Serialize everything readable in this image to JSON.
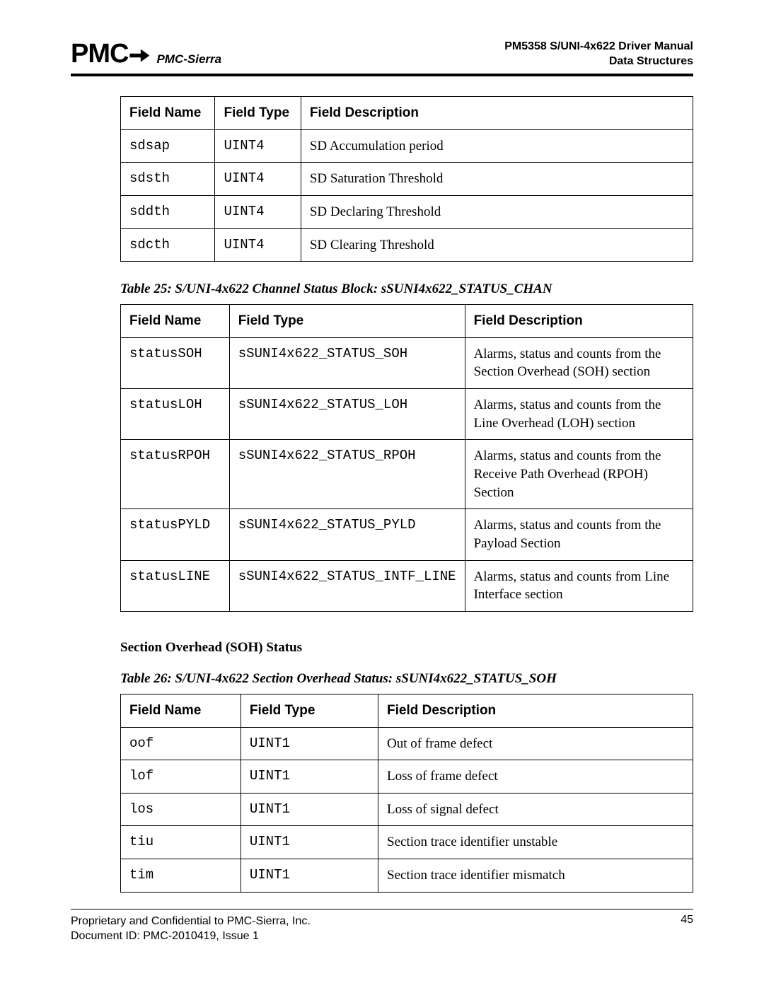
{
  "header": {
    "logo_text": "PMC",
    "logo_sub": "PMC-Sierra",
    "doc_title_line1": "PM5358 S/UNI-4x622 Driver Manual",
    "doc_title_line2": "Data Structures"
  },
  "table1": {
    "headers": [
      "Field Name",
      "Field Type",
      "Field Description"
    ],
    "rows": [
      {
        "name": "sdsap",
        "type": "UINT4",
        "desc": "SD Accumulation period"
      },
      {
        "name": "sdsth",
        "type": "UINT4",
        "desc": "SD Saturation Threshold"
      },
      {
        "name": "sddth",
        "type": "UINT4",
        "desc": "SD Declaring Threshold"
      },
      {
        "name": "sdcth",
        "type": "UINT4",
        "desc": "SD Clearing Threshold"
      }
    ]
  },
  "caption25": "Table 25: S/UNI-4x622 Channel Status Block: sSUNI4x622_STATUS_CHAN",
  "table2": {
    "headers": [
      "Field Name",
      "Field Type",
      "Field Description"
    ],
    "rows": [
      {
        "name": "statusSOH",
        "type": "sSUNI4x622_STATUS_SOH",
        "desc": "Alarms, status and counts from the Section Overhead (SOH) section"
      },
      {
        "name": "statusLOH",
        "type": "sSUNI4x622_STATUS_LOH",
        "desc": "Alarms, status and counts from the Line Overhead (LOH) section"
      },
      {
        "name": "statusRPOH",
        "type": "sSUNI4x622_STATUS_RPOH",
        "desc": "Alarms, status and counts from the Receive Path Overhead (RPOH) Section"
      },
      {
        "name": "statusPYLD",
        "type": "sSUNI4x622_STATUS_PYLD",
        "desc": "Alarms, status and counts from the Payload Section"
      },
      {
        "name": "statusLINE",
        "type": "sSUNI4x622_STATUS_INTF_LINE",
        "desc": "Alarms, status and counts from Line Interface section"
      }
    ]
  },
  "section_head": "Section Overhead (SOH) Status",
  "caption26": "Table 26: S/UNI-4x622 Section Overhead Status: sSUNI4x622_STATUS_SOH",
  "table3": {
    "headers": [
      "Field Name",
      "Field Type",
      "Field Description"
    ],
    "rows": [
      {
        "name": "oof",
        "type": "UINT1",
        "desc": "Out of frame defect"
      },
      {
        "name": "lof",
        "type": "UINT1",
        "desc": "Loss of frame defect"
      },
      {
        "name": "los",
        "type": "UINT1",
        "desc": "Loss of signal defect"
      },
      {
        "name": "tiu",
        "type": "UINT1",
        "desc": "Section trace identifier unstable"
      },
      {
        "name": "tim",
        "type": "UINT1",
        "desc": "Section trace identifier mismatch"
      }
    ]
  },
  "footer": {
    "left_line1": "Proprietary and Confidential to PMC-Sierra, Inc.",
    "left_line2": "Document ID: PMC-2010419, Issue 1",
    "page_num": "45"
  }
}
